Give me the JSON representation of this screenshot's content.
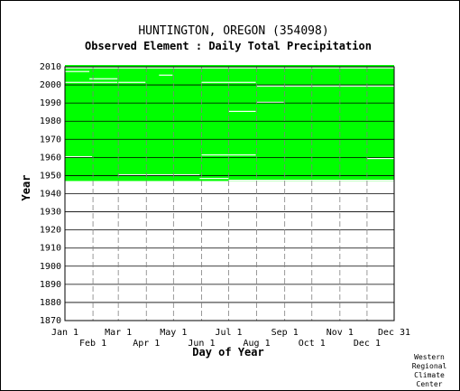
{
  "chart_data": {
    "type": "heatmap",
    "title": "HUNTINGTON, OREGON   (354098)",
    "subtitle": "Observed Element : Daily Total Precipitation",
    "xlabel": "Day of Year",
    "ylabel": "Year",
    "x_ticks_top": [
      "Jan 1",
      "Mar 1",
      "May 1",
      "Jul 1",
      "Sep 1",
      "Nov 1",
      "Dec 31"
    ],
    "x_ticks_bottom": [
      "Feb 1",
      "Apr 1",
      "Jun 1",
      "Aug 1",
      "Oct 1",
      "Dec 1"
    ],
    "y_ticks": [
      1870,
      1880,
      1890,
      1900,
      1910,
      1920,
      1930,
      1940,
      1950,
      1960,
      1970,
      1980,
      1990,
      2000,
      2010
    ],
    "ylim": [
      1870,
      2010
    ],
    "xlim": [
      1,
      365
    ],
    "record_start_year": 1947,
    "record_end_year": 2010,
    "data_color": "#00ff00",
    "missing_color": "#ffffff",
    "missing_segments": [
      {
        "year": 2009,
        "start_day": 1,
        "end_day": 365
      },
      {
        "year": 2007,
        "start_day": 1,
        "end_day": 28
      },
      {
        "year": 2003,
        "start_day": 28,
        "end_day": 59
      },
      {
        "year": 2001,
        "start_day": 1,
        "end_day": 59
      },
      {
        "year": 2001,
        "start_day": 60,
        "end_day": 90
      },
      {
        "year": 2001,
        "start_day": 152,
        "end_day": 212
      },
      {
        "year": 2005,
        "start_day": 105,
        "end_day": 120
      },
      {
        "year": 1999,
        "start_day": 213,
        "end_day": 365
      },
      {
        "year": 1990,
        "start_day": 213,
        "end_day": 243
      },
      {
        "year": 1985,
        "start_day": 182,
        "end_day": 212
      },
      {
        "year": 1960,
        "start_day": 1,
        "end_day": 31
      },
      {
        "year": 1961,
        "start_day": 152,
        "end_day": 212
      },
      {
        "year": 1959,
        "start_day": 335,
        "end_day": 365
      },
      {
        "year": 1950,
        "start_day": 60,
        "end_day": 150
      },
      {
        "year": 1948,
        "start_day": 150,
        "end_day": 182
      },
      {
        "year": 1947,
        "start_day": 182,
        "end_day": 365
      }
    ],
    "grid": true
  },
  "credit": [
    "Western",
    "Regional",
    "Climate",
    "Center"
  ]
}
